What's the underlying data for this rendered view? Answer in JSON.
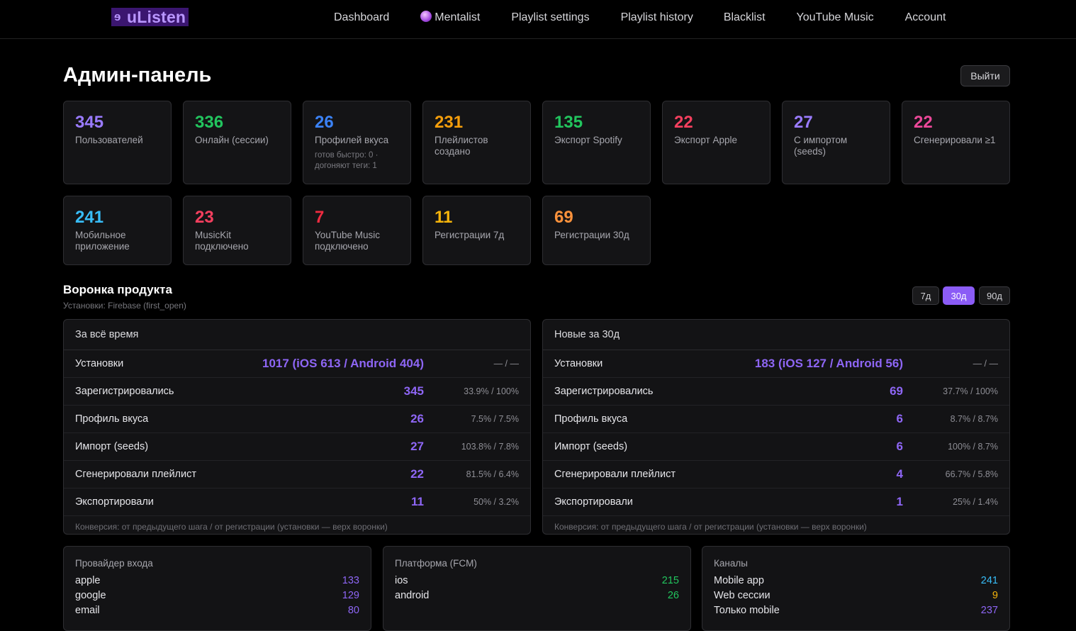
{
  "nav": {
    "logo": "uListen",
    "links": [
      "Dashboard",
      "Mentalist",
      "Playlist settings",
      "Playlist history",
      "Blacklist",
      "YouTube Music",
      "Account"
    ]
  },
  "page_title": "Админ-панель",
  "logout_label": "Выйти",
  "stats": [
    {
      "value": "345",
      "label": "Пользователей",
      "color": "#9a7bff"
    },
    {
      "value": "336",
      "label": "Онлайн (сессии)",
      "color": "#22c55e"
    },
    {
      "value": "26",
      "label": "Профилей вкуса",
      "sub": "готов быстро: 0 · догоняют теги: 1",
      "color": "#3b82f6"
    },
    {
      "value": "231",
      "label": "Плейлистов создано",
      "color": "#f59e0b"
    },
    {
      "value": "135",
      "label": "Экспорт Spotify",
      "color": "#22c55e"
    },
    {
      "value": "22",
      "label": "Экспорт Apple",
      "color": "#f43f5e"
    },
    {
      "value": "27",
      "label": "С импортом (seeds)",
      "color": "#9a7bff"
    },
    {
      "value": "22",
      "label": "Сгенерировали ≥1",
      "color": "#ec4899"
    },
    {
      "value": "241",
      "label": "Мобильное приложение",
      "color": "#38bdf8"
    },
    {
      "value": "23",
      "label": "MusicKit подключено",
      "color": "#f43f5e"
    },
    {
      "value": "7",
      "label": "YouTube Music подключено",
      "color": "#ef2b40"
    },
    {
      "value": "11",
      "label": "Регистрации 7д",
      "color": "#f5b40b"
    },
    {
      "value": "69",
      "label": "Регистрации 30д",
      "color": "#fb923c"
    }
  ],
  "funnel": {
    "title": "Воронка продукта",
    "subtitle": "Установки: Firebase (first_open)",
    "ranges": [
      "7д",
      "30д",
      "90д"
    ],
    "active_range": "30д",
    "panels": [
      {
        "header": "За всё время",
        "rows": [
          {
            "name": "Установки",
            "value": "1017 (iOS 613 / Android 404)",
            "pct": "— / —"
          },
          {
            "name": "Зарегистрировались",
            "value": "345",
            "pct": "33.9% / 100%"
          },
          {
            "name": "Профиль вкуса",
            "value": "26",
            "pct": "7.5% / 7.5%"
          },
          {
            "name": "Импорт (seeds)",
            "value": "27",
            "pct": "103.8% / 7.8%"
          },
          {
            "name": "Сгенерировали плейлист",
            "value": "22",
            "pct": "81.5% / 6.4%"
          },
          {
            "name": "Экспортировали",
            "value": "11",
            "pct": "50% / 3.2%"
          }
        ],
        "footer": "Конверсия: от предыдущего шага / от регистрации (установки — верх воронки)"
      },
      {
        "header": "Новые за 30д",
        "rows": [
          {
            "name": "Установки",
            "value": "183 (iOS 127 / Android 56)",
            "pct": "— / —"
          },
          {
            "name": "Зарегистрировались",
            "value": "69",
            "pct": "37.7% / 100%"
          },
          {
            "name": "Профиль вкуса",
            "value": "6",
            "pct": "8.7% / 8.7%"
          },
          {
            "name": "Импорт (seeds)",
            "value": "6",
            "pct": "100% / 8.7%"
          },
          {
            "name": "Сгенерировали плейлист",
            "value": "4",
            "pct": "66.7% / 5.8%"
          },
          {
            "name": "Экспортировали",
            "value": "1",
            "pct": "25% / 1.4%"
          }
        ],
        "footer": "Конверсия: от предыдущего шага / от регистрации (установки — верх воронки)"
      }
    ]
  },
  "mini_panels": [
    {
      "title": "Провайдер входа",
      "color": "#8e66f5",
      "rows": [
        {
          "name": "apple",
          "value": "133"
        },
        {
          "name": "google",
          "value": "129"
        },
        {
          "name": "email",
          "value": "80"
        }
      ]
    },
    {
      "title": "Платформа (FCM)",
      "color": "#22c55e",
      "rows": [
        {
          "name": "ios",
          "value": "215"
        },
        {
          "name": "android",
          "value": "26"
        }
      ]
    },
    {
      "title": "Каналы",
      "rows": [
        {
          "name": "Mobile app",
          "value": "241",
          "color": "#38bdf8"
        },
        {
          "name": "Web сессии",
          "value": "9",
          "color": "#f5b40b"
        },
        {
          "name": "Только mobile",
          "value": "237",
          "color": "#8e66f5"
        }
      ]
    }
  ]
}
